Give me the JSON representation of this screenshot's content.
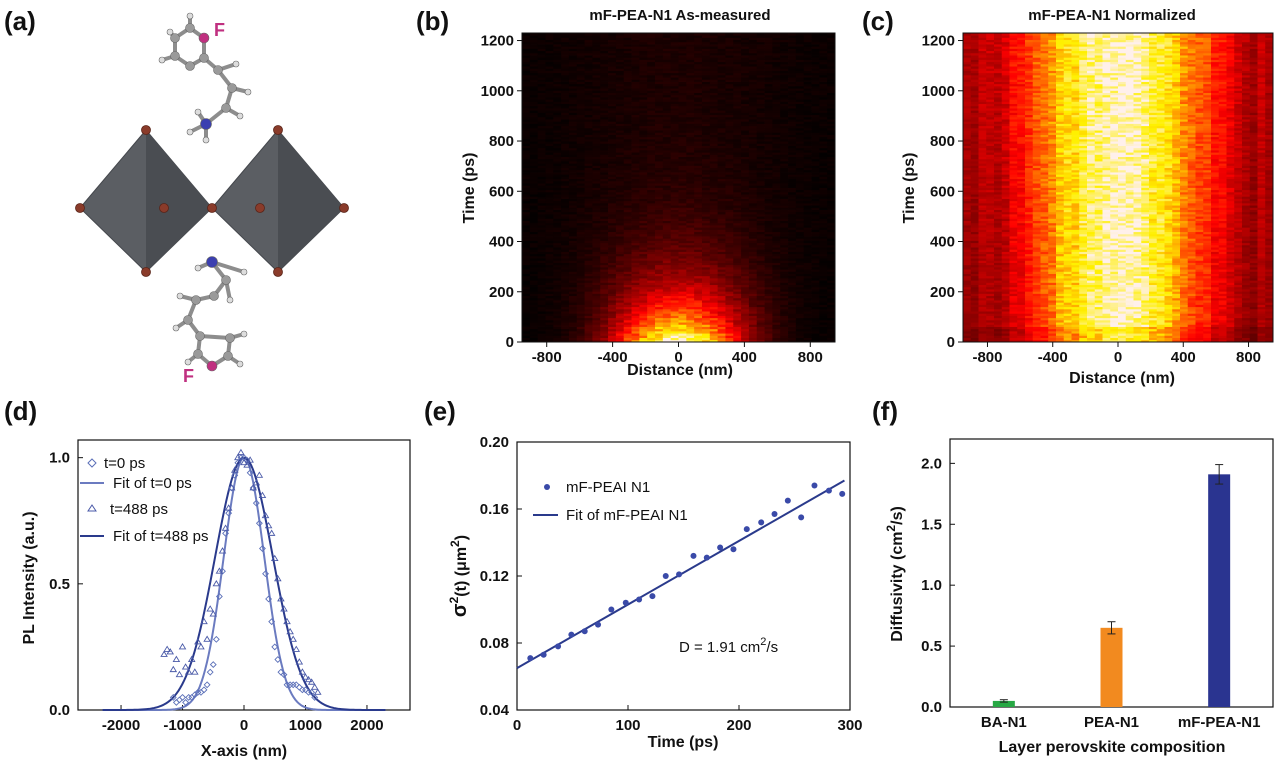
{
  "figure": {
    "panel_labels": [
      "(a)",
      "(b)",
      "(c)",
      "(d)",
      "(e)",
      "(f)"
    ],
    "molecule": {
      "atom_label_top": "F",
      "atom_label_bottom": "F",
      "colors": {
        "octahedron": "#5b5e63",
        "halide": "#8a3b2a",
        "carbon": "#9a9a9a",
        "hydrogen": "#dddddd",
        "nitrogen": "#3b3fb0",
        "fluorine": "#c03080"
      }
    }
  },
  "chart_data": [
    {
      "panel": "b",
      "type": "heatmap",
      "title": "mF-PEA-N1 As-measured",
      "xlabel": "Distance (nm)",
      "ylabel": "Time (ps)",
      "xlim": [
        -950,
        950
      ],
      "ylim": [
        0,
        1230
      ],
      "xticks": [
        -800,
        -400,
        0,
        400,
        800
      ],
      "yticks": [
        0,
        200,
        400,
        600,
        800,
        1000,
        1200
      ],
      "colormap": "hot",
      "normalized": false
    },
    {
      "panel": "c",
      "type": "heatmap",
      "title": "mF-PEA-N1 Normalized",
      "xlabel": "Distance (nm)",
      "ylabel": "Time (ps)",
      "xlim": [
        -950,
        950
      ],
      "ylim": [
        0,
        1230
      ],
      "xticks": [
        -800,
        -400,
        0,
        400,
        800
      ],
      "yticks": [
        0,
        200,
        400,
        600,
        800,
        1000,
        1200
      ],
      "colormap": "hot",
      "normalized": true
    },
    {
      "panel": "d",
      "type": "scatter",
      "xlabel": "X-axis (nm)",
      "ylabel": "PL Intensity (a.u.)",
      "xlim": [
        -2700,
        2700
      ],
      "ylim": [
        0,
        1.07
      ],
      "xticks": [
        -2000,
        -1000,
        0,
        1000,
        2000
      ],
      "yticks": [
        0.0,
        0.5,
        1.0
      ],
      "ytick_labels": [
        "0.0",
        "0.5",
        "1.0"
      ],
      "legend_position": "top-left",
      "series": [
        {
          "name": "t=0 ps",
          "kind": "points",
          "marker": "diamond",
          "color": "#5a6fb8",
          "x": [
            -1150,
            -1100,
            -1050,
            -1000,
            -950,
            -900,
            -850,
            -800,
            -750,
            -700,
            -650,
            -600,
            -550,
            -500,
            -450,
            -400,
            -350,
            -300,
            -250,
            -200,
            -150,
            -100,
            -50,
            0,
            50,
            100,
            150,
            200,
            250,
            300,
            350,
            400,
            450,
            500,
            550,
            600,
            650,
            700,
            750,
            800,
            850,
            900,
            950,
            1000,
            1050,
            1100,
            1150
          ],
          "y": [
            0.05,
            0.03,
            0.04,
            0.05,
            0.03,
            0.05,
            0.05,
            0.06,
            0.07,
            0.07,
            0.08,
            0.1,
            0.15,
            0.18,
            0.28,
            0.45,
            0.55,
            0.7,
            0.78,
            0.88,
            0.93,
            0.98,
            1.0,
            1.0,
            0.99,
            0.94,
            0.88,
            0.82,
            0.74,
            0.64,
            0.54,
            0.44,
            0.35,
            0.25,
            0.2,
            0.15,
            0.14,
            0.1,
            0.1,
            0.1,
            0.1,
            0.09,
            0.08,
            0.08,
            0.07,
            0.07,
            0.05
          ]
        },
        {
          "name": "Fit of t=0 ps",
          "kind": "gaussian",
          "color": "#6b7bc0",
          "amplitude": 1.0,
          "center": 0,
          "sigma": 330
        },
        {
          "name": "t=488 ps",
          "kind": "points",
          "marker": "triangle",
          "color": "#4a5aa8",
          "x": [
            -1300,
            -1250,
            -1200,
            -1150,
            -1100,
            -1050,
            -1000,
            -950,
            -900,
            -850,
            -800,
            -750,
            -700,
            -650,
            -600,
            -550,
            -500,
            -450,
            -400,
            -350,
            -300,
            -250,
            -200,
            -150,
            -100,
            -50,
            0,
            50,
            100,
            150,
            200,
            250,
            300,
            350,
            400,
            450,
            500,
            550,
            600,
            650,
            700,
            750,
            800,
            850,
            900,
            950,
            1000,
            1050,
            1100,
            1150,
            1200
          ],
          "y": [
            0.22,
            0.24,
            0.23,
            0.16,
            0.2,
            0.14,
            0.25,
            0.17,
            0.15,
            0.2,
            0.15,
            0.27,
            0.25,
            0.35,
            0.28,
            0.4,
            0.38,
            0.5,
            0.55,
            0.63,
            0.72,
            0.8,
            0.88,
            0.95,
            1.0,
            1.02,
            0.98,
            0.97,
            0.99,
            0.88,
            0.9,
            0.93,
            0.85,
            0.77,
            0.73,
            0.7,
            0.6,
            0.52,
            0.44,
            0.4,
            0.35,
            0.31,
            0.28,
            0.24,
            0.19,
            0.15,
            0.13,
            0.12,
            0.11,
            0.09,
            0.07
          ]
        },
        {
          "name": "Fit of t=488 ps",
          "kind": "gaussian",
          "color": "#2a3a8c",
          "amplitude": 1.0,
          "center": 0,
          "sigma": 470
        }
      ]
    },
    {
      "panel": "e",
      "type": "scatter",
      "xlabel": "Time (ps)",
      "ylabel_main": "σ",
      "ylabel_sup": "2",
      "ylabel_rest": "(t) (μm",
      "ylabel_unit_sup": "2",
      "ylabel_close": ")",
      "xlim": [
        0,
        300
      ],
      "ylim": [
        0.04,
        0.2
      ],
      "xticks": [
        0,
        100,
        200,
        300
      ],
      "yticks": [
        0.04,
        0.08,
        0.12,
        0.16,
        0.2
      ],
      "ytick_labels": [
        "0.04",
        "0.08",
        "0.12",
        "0.16",
        "0.20"
      ],
      "legend_position": "top-left",
      "annotation_prefix": "D = 1.91 cm",
      "annotation_sup": "2",
      "annotation_suffix": "/s",
      "series": [
        {
          "name": "mF-PEAI N1",
          "kind": "points",
          "marker": "circle",
          "color": "#3a4aa8",
          "x": [
            12,
            24,
            37,
            49,
            61,
            73,
            85,
            98,
            110,
            122,
            134,
            146,
            159,
            171,
            183,
            195,
            207,
            220,
            232,
            244,
            256,
            268,
            281,
            293
          ],
          "y": [
            0.071,
            0.073,
            0.078,
            0.085,
            0.087,
            0.091,
            0.1,
            0.104,
            0.106,
            0.108,
            0.12,
            0.121,
            0.132,
            0.131,
            0.137,
            0.136,
            0.148,
            0.152,
            0.157,
            0.165,
            0.155,
            0.174,
            0.171,
            0.169
          ]
        },
        {
          "name": "Fit of mF-PEAI N1",
          "kind": "line",
          "color": "#2a3a8c",
          "x": [
            0,
            295
          ],
          "y": [
            0.065,
            0.177
          ]
        }
      ]
    },
    {
      "panel": "f",
      "type": "bar",
      "xlabel": "Layer perovskite composition",
      "ylabel_main": "Diffusivity (cm",
      "ylabel_sup": "2",
      "ylabel_rest": "/s)",
      "categories": [
        "BA-N1",
        "PEA-N1",
        "mF-PEA-N1"
      ],
      "values": [
        0.05,
        0.65,
        1.91
      ],
      "errors": [
        0.01,
        0.05,
        0.08
      ],
      "colors": [
        "#27a844",
        "#f28a1f",
        "#2a3490"
      ],
      "ylim": [
        0,
        2.2
      ],
      "yticks": [
        0.0,
        0.5,
        1.0,
        1.5,
        2.0
      ],
      "ytick_labels": [
        "0.0",
        "0.5",
        "1.0",
        "1.5",
        "2.0"
      ]
    }
  ]
}
